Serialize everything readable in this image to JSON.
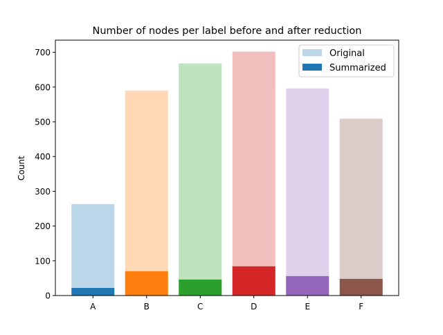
{
  "chart_data": {
    "type": "bar",
    "title": "Number of nodes per label before and after reduction",
    "xlabel": "",
    "ylabel": "Count",
    "ylim": [
      0,
      735
    ],
    "yticks": [
      0,
      100,
      200,
      300,
      400,
      500,
      600,
      700
    ],
    "categories": [
      "A",
      "B",
      "C",
      "D",
      "E",
      "F"
    ],
    "series": [
      {
        "name": "Original",
        "values": [
          263,
          590,
          668,
          702,
          596,
          509
        ]
      },
      {
        "name": "Summarized",
        "values": [
          22,
          70,
          46,
          84,
          56,
          48
        ]
      }
    ],
    "colors": [
      "#1f77b4",
      "#ff7f0e",
      "#2ca02c",
      "#d62728",
      "#9467bd",
      "#8c564b"
    ],
    "original_alpha": 0.3,
    "legend": "top-right",
    "grid": false
  }
}
